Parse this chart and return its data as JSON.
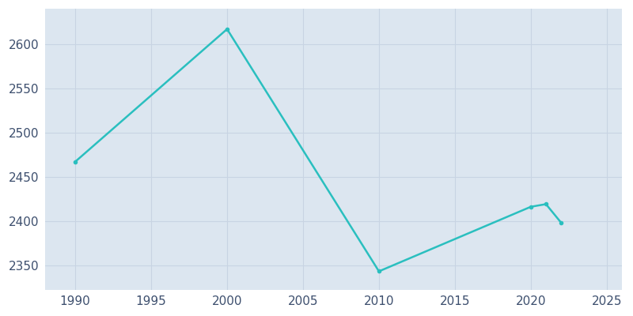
{
  "years": [
    1990,
    2000,
    2010,
    2020,
    2021,
    2022
  ],
  "population": [
    2467,
    2617,
    2343,
    2416,
    2419,
    2398
  ],
  "line_color": "#2abfbf",
  "fig_bg_color": "#ffffff",
  "plot_bg_color": "#dce6f0",
  "marker": "o",
  "marker_size": 3,
  "line_width": 1.8,
  "xlim": [
    1988,
    2026
  ],
  "ylim": [
    2322,
    2640
  ],
  "yticks": [
    2350,
    2400,
    2450,
    2500,
    2550,
    2600
  ],
  "xticks": [
    1990,
    1995,
    2000,
    2005,
    2010,
    2015,
    2020,
    2025
  ],
  "grid_color": "#c8d4e3",
  "tick_color": "#3d4f6e",
  "tick_fontsize": 11
}
